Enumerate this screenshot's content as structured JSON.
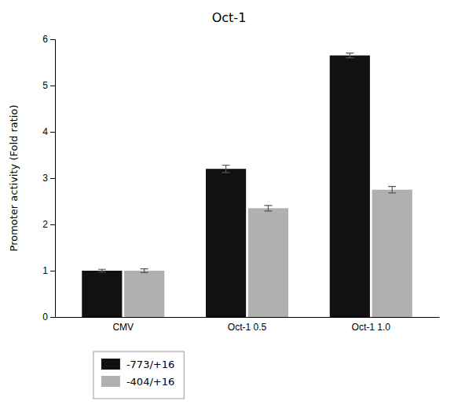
{
  "chart_data": {
    "type": "bar",
    "title": "Oct-1",
    "ylabel": "Promoter activity (Fold ratio)",
    "categories": [
      "CMV",
      "Oct-1 0.5",
      "Oct-1 1.0"
    ],
    "series": [
      {
        "name": "-773/+16",
        "color": "#111111",
        "values": [
          1.0,
          3.2,
          5.65
        ],
        "errors": [
          0.03,
          0.08,
          0.05
        ]
      },
      {
        "name": "-404/+16",
        "color": "#b0b0b0",
        "values": [
          1.0,
          2.35,
          2.75
        ],
        "errors": [
          0.04,
          0.06,
          0.07
        ]
      }
    ],
    "ylim": [
      0,
      6
    ],
    "yticks": [
      0,
      1,
      2,
      3,
      4,
      5,
      6
    ],
    "grid": false,
    "legend": "bottom"
  }
}
